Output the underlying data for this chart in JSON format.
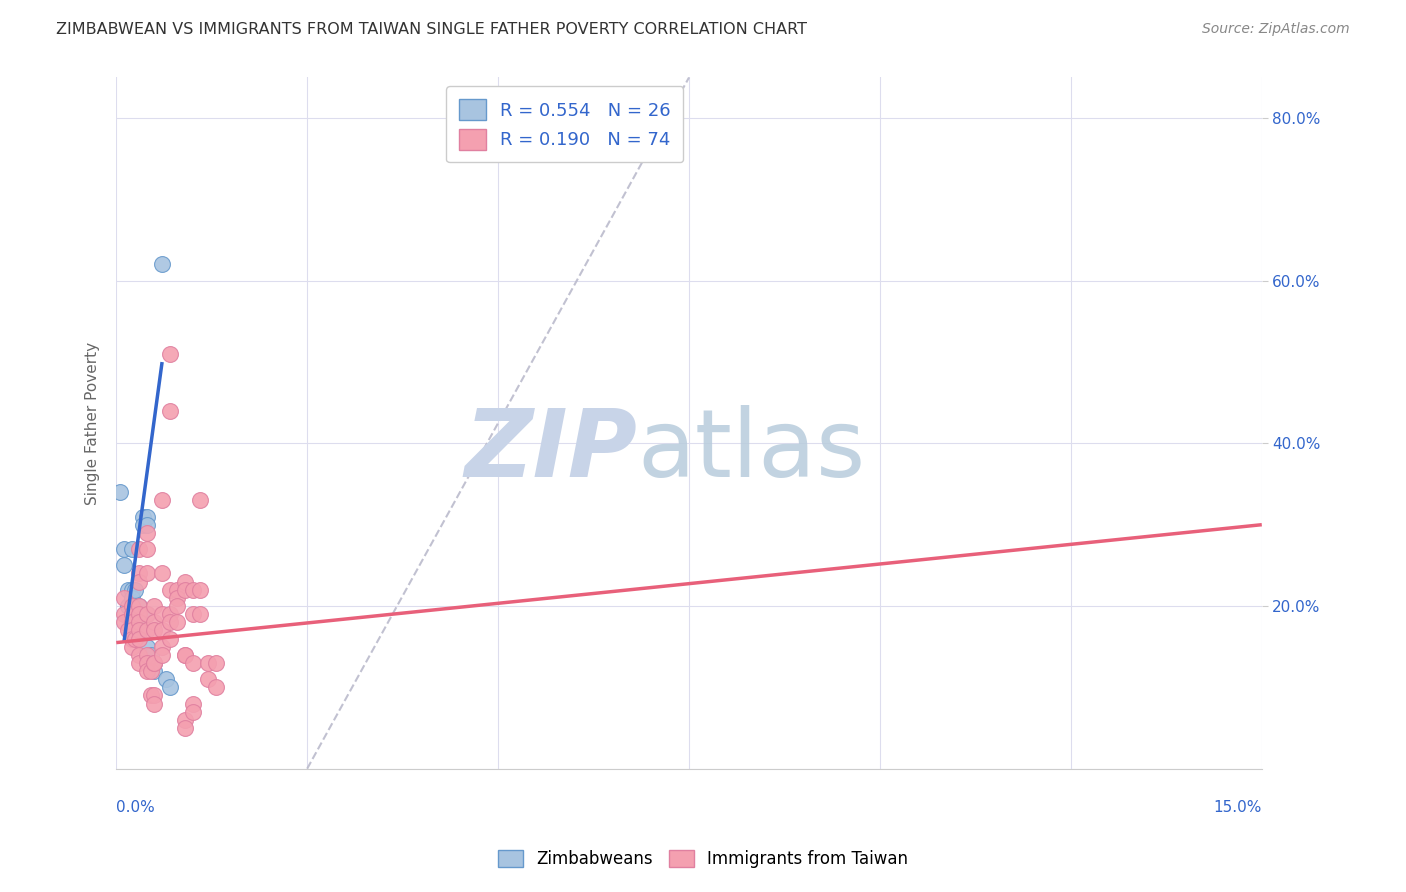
{
  "title": "ZIMBABWEAN VS IMMIGRANTS FROM TAIWAN SINGLE FATHER POVERTY CORRELATION CHART",
  "source": "Source: ZipAtlas.com",
  "ylabel": "Single Father Poverty",
  "xlim": [
    0.0,
    0.15
  ],
  "ylim": [
    0.0,
    0.85
  ],
  "zim_color": "#a8c4e0",
  "taiwan_color": "#f4a0b0",
  "zim_edge_color": "#6699cc",
  "taiwan_edge_color": "#e080a0",
  "zim_line_color": "#3366cc",
  "taiwan_line_color": "#e8607a",
  "ref_line_color": "#bbbbcc",
  "grid_color": "#ddddee",
  "watermark_zip_color": "#c8d4e8",
  "watermark_atlas_color": "#b8ccdc",
  "right_axis_color": "#3366cc",
  "title_color": "#333333",
  "source_color": "#888888",
  "ylabel_color": "#666666",
  "bottom_label_color": "#3366cc",
  "zim_points": [
    [
      0.0005,
      0.34
    ],
    [
      0.001,
      0.27
    ],
    [
      0.001,
      0.25
    ],
    [
      0.0015,
      0.22
    ],
    [
      0.0015,
      0.2
    ],
    [
      0.002,
      0.27
    ],
    [
      0.002,
      0.22
    ],
    [
      0.002,
      0.21
    ],
    [
      0.002,
      0.2
    ],
    [
      0.002,
      0.19
    ],
    [
      0.0025,
      0.22
    ],
    [
      0.003,
      0.2
    ],
    [
      0.003,
      0.18
    ],
    [
      0.003,
      0.17
    ],
    [
      0.0035,
      0.31
    ],
    [
      0.0035,
      0.3
    ],
    [
      0.004,
      0.31
    ],
    [
      0.004,
      0.3
    ],
    [
      0.004,
      0.19
    ],
    [
      0.004,
      0.15
    ],
    [
      0.0045,
      0.14
    ],
    [
      0.005,
      0.13
    ],
    [
      0.005,
      0.12
    ],
    [
      0.006,
      0.62
    ],
    [
      0.0065,
      0.11
    ],
    [
      0.007,
      0.1
    ]
  ],
  "taiwan_points": [
    [
      0.001,
      0.21
    ],
    [
      0.001,
      0.19
    ],
    [
      0.001,
      0.18
    ],
    [
      0.0015,
      0.17
    ],
    [
      0.002,
      0.2
    ],
    [
      0.002,
      0.19
    ],
    [
      0.002,
      0.18
    ],
    [
      0.002,
      0.17
    ],
    [
      0.002,
      0.16
    ],
    [
      0.002,
      0.15
    ],
    [
      0.0025,
      0.16
    ],
    [
      0.003,
      0.27
    ],
    [
      0.003,
      0.24
    ],
    [
      0.003,
      0.23
    ],
    [
      0.003,
      0.2
    ],
    [
      0.003,
      0.19
    ],
    [
      0.003,
      0.18
    ],
    [
      0.003,
      0.17
    ],
    [
      0.003,
      0.16
    ],
    [
      0.003,
      0.14
    ],
    [
      0.003,
      0.13
    ],
    [
      0.004,
      0.29
    ],
    [
      0.004,
      0.27
    ],
    [
      0.004,
      0.24
    ],
    [
      0.004,
      0.19
    ],
    [
      0.004,
      0.17
    ],
    [
      0.004,
      0.14
    ],
    [
      0.004,
      0.13
    ],
    [
      0.004,
      0.12
    ],
    [
      0.0045,
      0.12
    ],
    [
      0.0045,
      0.09
    ],
    [
      0.005,
      0.2
    ],
    [
      0.005,
      0.18
    ],
    [
      0.005,
      0.17
    ],
    [
      0.005,
      0.13
    ],
    [
      0.005,
      0.13
    ],
    [
      0.005,
      0.09
    ],
    [
      0.005,
      0.08
    ],
    [
      0.006,
      0.33
    ],
    [
      0.006,
      0.24
    ],
    [
      0.006,
      0.19
    ],
    [
      0.006,
      0.17
    ],
    [
      0.006,
      0.15
    ],
    [
      0.006,
      0.14
    ],
    [
      0.007,
      0.44
    ],
    [
      0.007,
      0.22
    ],
    [
      0.007,
      0.19
    ],
    [
      0.007,
      0.18
    ],
    [
      0.007,
      0.16
    ],
    [
      0.007,
      0.51
    ],
    [
      0.008,
      0.22
    ],
    [
      0.008,
      0.21
    ],
    [
      0.008,
      0.2
    ],
    [
      0.008,
      0.18
    ],
    [
      0.009,
      0.23
    ],
    [
      0.009,
      0.22
    ],
    [
      0.009,
      0.14
    ],
    [
      0.009,
      0.14
    ],
    [
      0.009,
      0.06
    ],
    [
      0.009,
      0.05
    ],
    [
      0.01,
      0.22
    ],
    [
      0.01,
      0.19
    ],
    [
      0.01,
      0.13
    ],
    [
      0.01,
      0.08
    ],
    [
      0.01,
      0.07
    ],
    [
      0.011,
      0.33
    ],
    [
      0.011,
      0.22
    ],
    [
      0.011,
      0.19
    ],
    [
      0.012,
      0.13
    ],
    [
      0.012,
      0.11
    ],
    [
      0.013,
      0.13
    ],
    [
      0.013,
      0.1
    ]
  ],
  "zim_line_x": [
    0.001,
    0.006
  ],
  "zim_line_y": [
    0.155,
    0.5
  ],
  "taiwan_line_x": [
    0.0,
    0.15
  ],
  "taiwan_line_y": [
    0.155,
    0.3
  ],
  "ref_line_x": [
    0.025,
    0.075
  ],
  "ref_line_y": [
    0.0,
    0.85
  ]
}
